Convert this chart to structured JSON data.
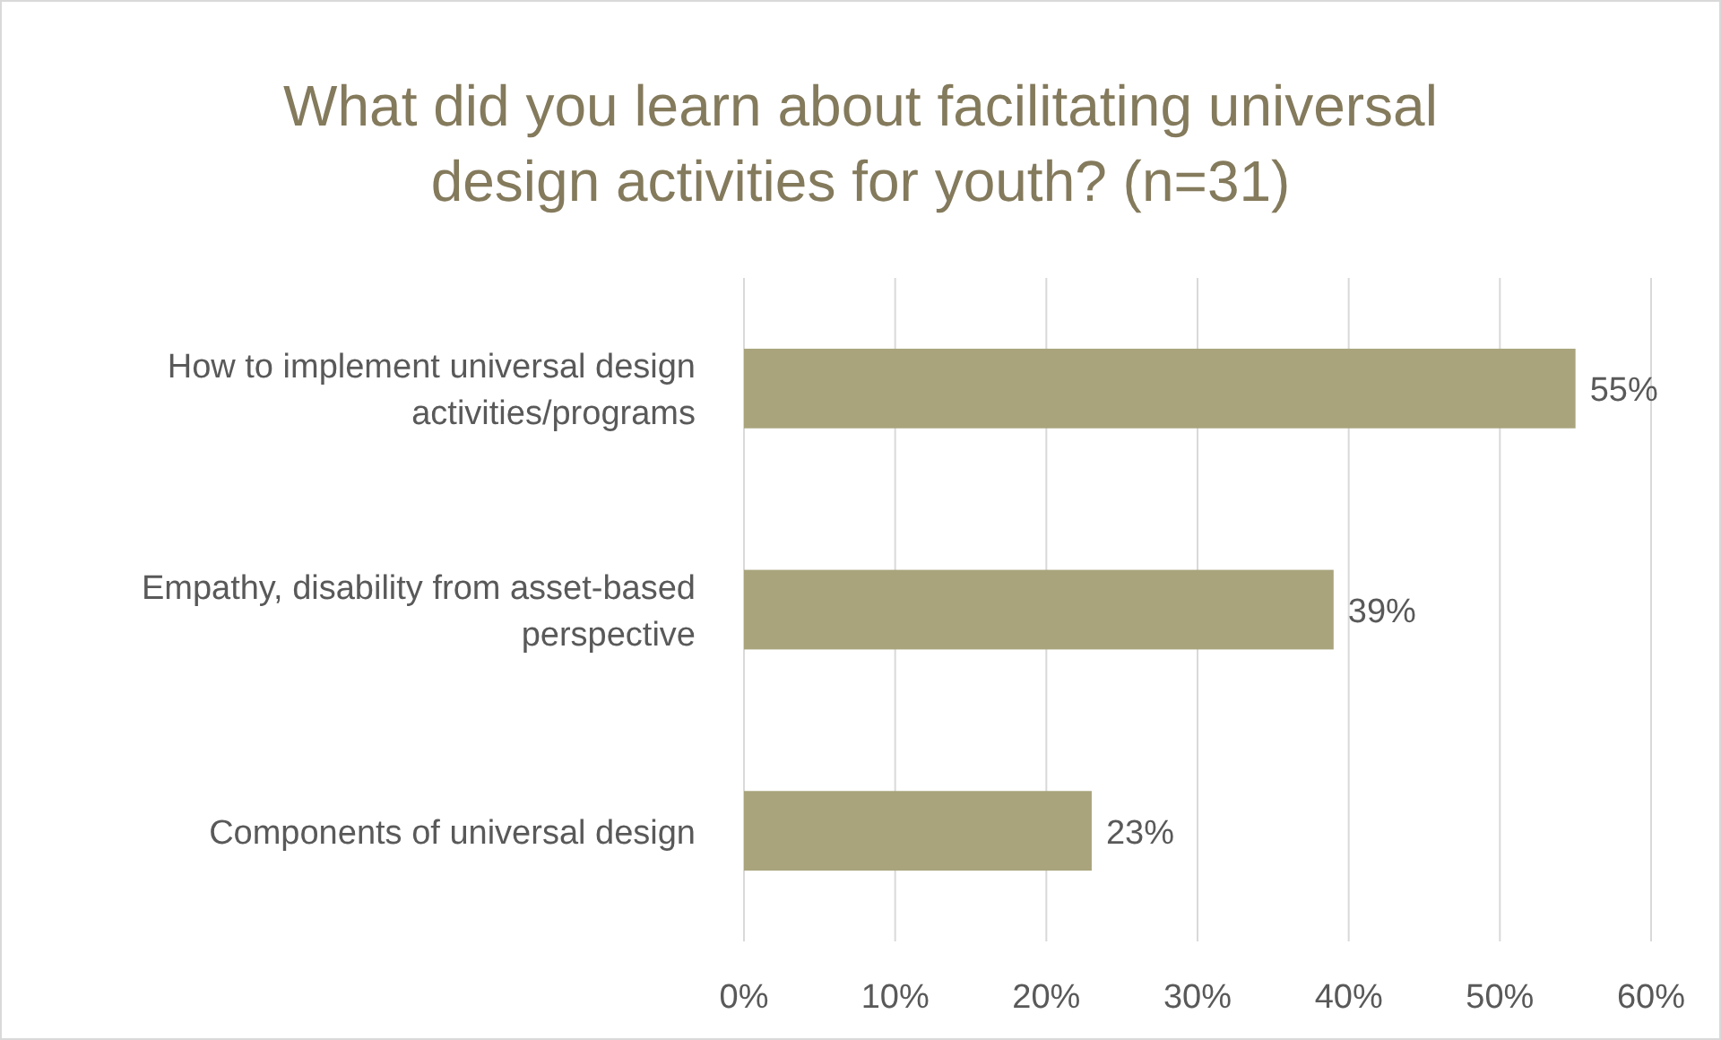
{
  "chart_data": {
    "type": "bar",
    "orientation": "horizontal",
    "title": "What did you learn about facilitating universal design activities for youth? (n=31)",
    "categories": [
      "How to implement universal design activities/programs",
      "Empathy, disability from asset-based perspective",
      "Components of universal design"
    ],
    "values": [
      55,
      39,
      23
    ],
    "value_labels": [
      "55%",
      "39%",
      "23%"
    ],
    "color": "#a9a47c",
    "xlim": [
      0,
      60
    ],
    "xticks": [
      {
        "value": 0,
        "label": "0%"
      },
      {
        "value": 10,
        "label": "10%"
      },
      {
        "value": 20,
        "label": "20%"
      },
      {
        "value": 30,
        "label": "30%"
      },
      {
        "value": 40,
        "label": "40%"
      },
      {
        "value": 50,
        "label": "50%"
      },
      {
        "value": 60,
        "label": "60%"
      }
    ],
    "grid": "x"
  }
}
